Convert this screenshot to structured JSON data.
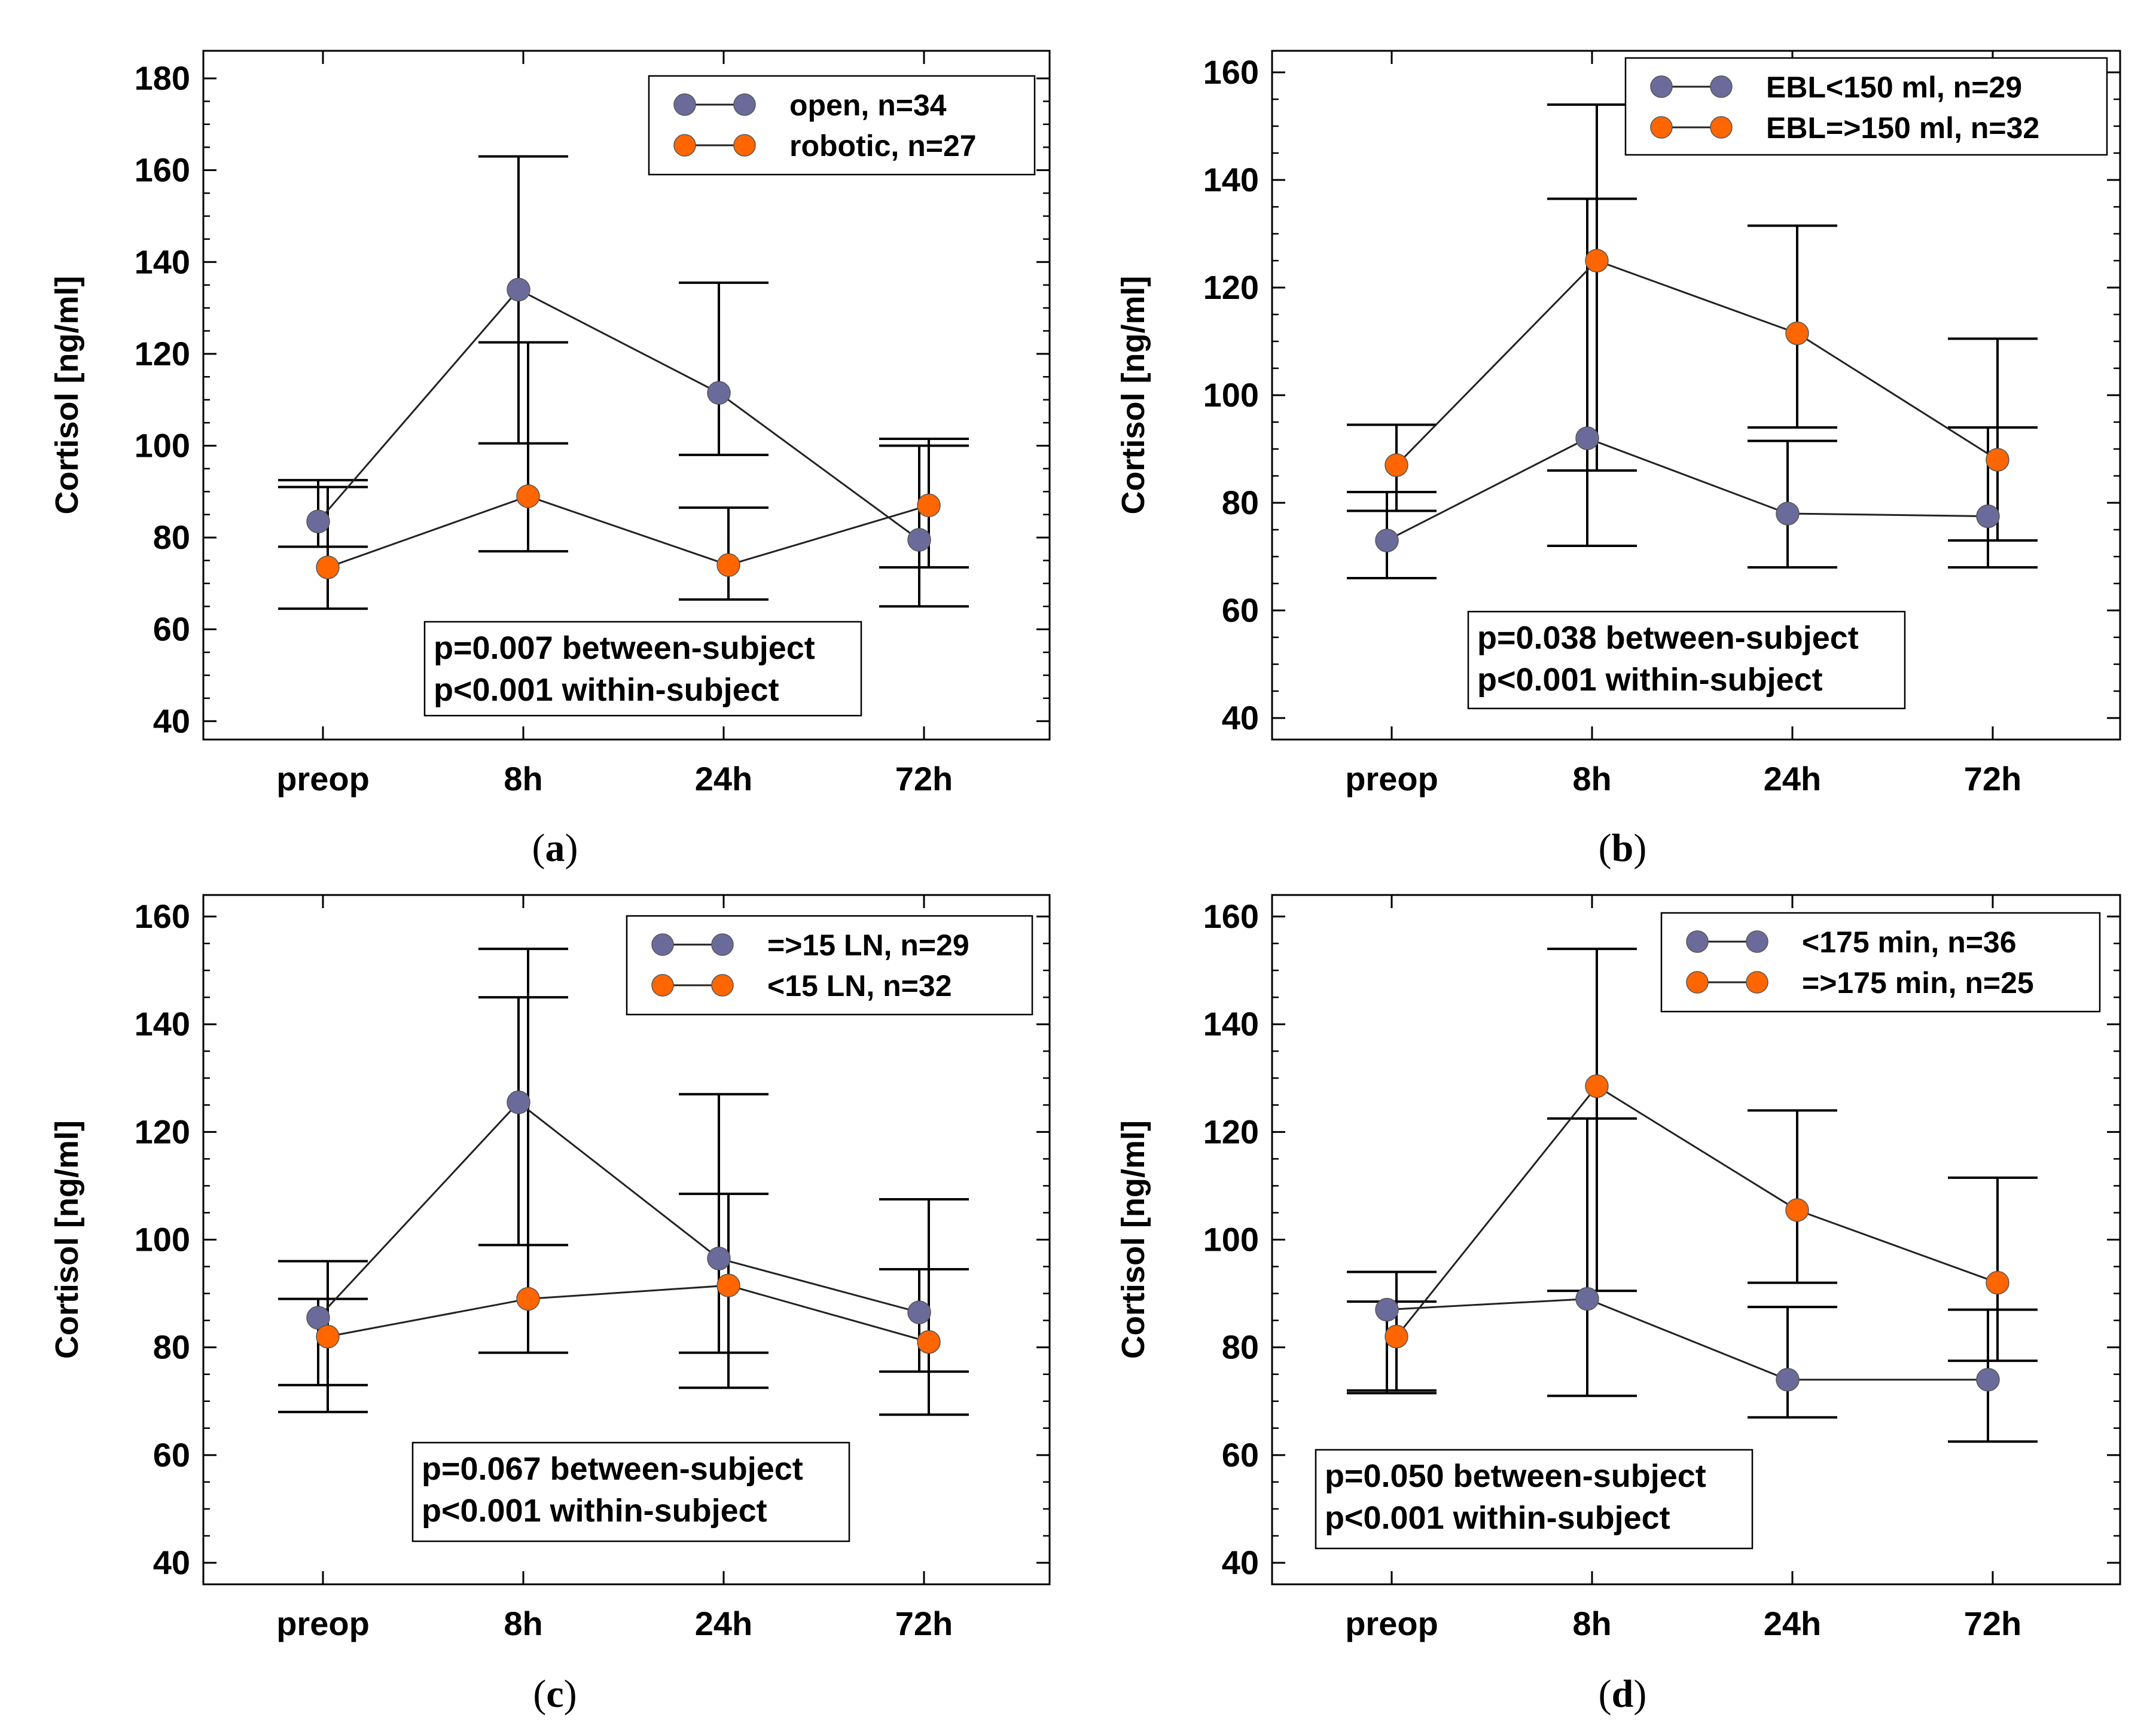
{
  "chart_data": [
    {
      "id": "a",
      "type": "line",
      "caption": "(a)",
      "caption_letter": "a",
      "ylabel": "Cortisol [ng/ml]",
      "xlabel": "",
      "ylim": [
        36,
        186
      ],
      "yticks": [
        40,
        60,
        80,
        100,
        120,
        140,
        160,
        180
      ],
      "categories": [
        "preop",
        "8h",
        "24h",
        "72h"
      ],
      "legend_position": "top-right",
      "series": [
        {
          "name": "open, n=34",
          "color": "#6b6b9b",
          "values": [
            83.5,
            134,
            111.5,
            79.5
          ],
          "err_low": [
            78,
            100.5,
            98,
            65
          ],
          "err_high": [
            92.5,
            163,
            135.5,
            100
          ]
        },
        {
          "name": "robotic, n=27",
          "color": "#ff6600",
          "values": [
            73.5,
            89,
            74,
            87
          ],
          "err_low": [
            64.5,
            77,
            66.5,
            73.5
          ],
          "err_high": [
            91,
            122.5,
            86.5,
            101.5
          ]
        }
      ],
      "stats": [
        "p=0.007 between-subject",
        "p<0.001 within-subject"
      ]
    },
    {
      "id": "b",
      "type": "line",
      "caption": "(b)",
      "caption_letter": "b",
      "ylabel": "Cortisol [ng/ml]",
      "xlabel": "",
      "ylim": [
        36,
        164
      ],
      "yticks": [
        40,
        60,
        80,
        100,
        120,
        140,
        160
      ],
      "categories": [
        "preop",
        "8h",
        "24h",
        "72h"
      ],
      "legend_position": "top-right",
      "series": [
        {
          "name": "EBL<150 ml, n=29",
          "color": "#6b6b9b",
          "values": [
            73,
            92,
            78,
            77.5
          ],
          "err_low": [
            66,
            72,
            68,
            68
          ],
          "err_high": [
            82,
            136.5,
            91.5,
            94
          ]
        },
        {
          "name": "EBL=>150 ml, n=32",
          "color": "#ff6600",
          "values": [
            87,
            125,
            111.5,
            88
          ],
          "err_low": [
            78.5,
            86,
            94,
            73
          ],
          "err_high": [
            94.5,
            154,
            131.5,
            110.5
          ]
        }
      ],
      "stats": [
        "p=0.038 between-subject",
        "p<0.001 within-subject"
      ]
    },
    {
      "id": "c",
      "type": "line",
      "caption": "(c)",
      "caption_letter": "c",
      "ylabel": "Cortisol [ng/ml]",
      "xlabel": "",
      "ylim": [
        36,
        164
      ],
      "yticks": [
        40,
        60,
        80,
        100,
        120,
        140,
        160
      ],
      "categories": [
        "preop",
        "8h",
        "24h",
        "72h"
      ],
      "legend_position": "top-right",
      "series": [
        {
          "name": "=>15 LN, n=29",
          "color": "#6b6b9b",
          "values": [
            85.5,
            125.5,
            96.5,
            86.5
          ],
          "err_low": [
            73,
            99,
            79,
            75.5
          ],
          "err_high": [
            89,
            145,
            127,
            94.5
          ]
        },
        {
          "name": "<15 LN, n=32",
          "color": "#ff6600",
          "values": [
            82,
            89,
            91.5,
            81
          ],
          "err_low": [
            68,
            79,
            72.5,
            67.5
          ],
          "err_high": [
            96,
            154,
            108.5,
            107.5
          ]
        }
      ],
      "stats": [
        "p=0.067 between-subject",
        "p<0.001 within-subject"
      ]
    },
    {
      "id": "d",
      "type": "line",
      "caption": "(d)",
      "caption_letter": "d",
      "ylabel": "Cortisol [ng/ml]",
      "xlabel": "",
      "ylim": [
        36,
        164
      ],
      "yticks": [
        40,
        60,
        80,
        100,
        120,
        140,
        160
      ],
      "categories": [
        "preop",
        "8h",
        "24h",
        "72h"
      ],
      "legend_position": "top-right",
      "series": [
        {
          "name": "<175 min, n=36",
          "color": "#6b6b9b",
          "values": [
            87,
            89,
            74,
            74
          ],
          "err_low": [
            71.5,
            71,
            67,
            62.5
          ],
          "err_high": [
            88.5,
            122.5,
            87.5,
            87
          ]
        },
        {
          "name": "=>175 min, n=25",
          "color": "#ff6600",
          "values": [
            82,
            128.5,
            105.5,
            92
          ],
          "err_low": [
            72,
            90.5,
            92,
            77.5
          ],
          "err_high": [
            94,
            154,
            124,
            111.5
          ]
        }
      ],
      "stats": [
        "p=0.050 between-subject",
        "p<0.001 within-subject"
      ]
    }
  ]
}
